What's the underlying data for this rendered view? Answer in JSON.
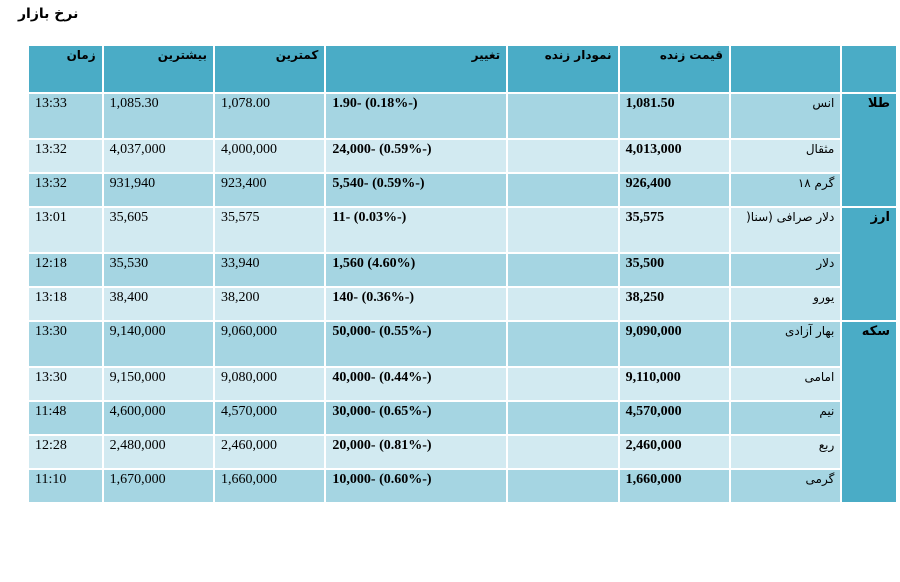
{
  "page": {
    "title": "نرخ بازار"
  },
  "headers": {
    "group": "",
    "name": "",
    "price": "قیمت زنده",
    "chart": "نمودار زنده",
    "change": "تغییر",
    "low": "کمترین",
    "high": "بیشترین",
    "time": "زمان"
  },
  "groups": [
    {
      "label": "طلا",
      "rows": [
        {
          "name": "انس",
          "price": "1,081.50",
          "chart": "",
          "change": "1.90- (0.18%-)",
          "low": "1,078.00",
          "high": "1,085.30",
          "time": "13:33"
        },
        {
          "name": "مثقال",
          "price": "4,013,000",
          "chart": "",
          "change": "24,000- (0.59%-)",
          "low": "4,000,000",
          "high": "4,037,000",
          "time": "13:32"
        },
        {
          "name": "گرم ۱۸",
          "price": "926,400",
          "chart": "",
          "change": "5,540- (0.59%-)",
          "low": "923,400",
          "high": "931,940",
          "time": "13:32"
        }
      ]
    },
    {
      "label": "ارز",
      "rows": [
        {
          "name": "دلار صرافی (سنا(",
          "price": "35,575",
          "chart": "",
          "change": "11- (0.03%-)",
          "low": "35,575",
          "high": "35,605",
          "time": "13:01"
        },
        {
          "name": "دلار",
          "price": "35,500",
          "chart": "",
          "change": "1,560 (4.60%)",
          "low": "33,940",
          "high": "35,530",
          "time": "12:18"
        },
        {
          "name": "یورو",
          "price": "38,250",
          "chart": "",
          "change": "140- (0.36%-)",
          "low": "38,200",
          "high": "38,400",
          "time": "13:18"
        }
      ]
    },
    {
      "label": "سکه",
      "rows": [
        {
          "name": "بهار آزادی",
          "price": "9,090,000",
          "chart": "",
          "change": "50,000- (0.55%-)",
          "low": "9,060,000",
          "high": "9,140,000",
          "time": "13:30"
        },
        {
          "name": "امامی",
          "price": "9,110,000",
          "chart": "",
          "change": "40,000- (0.44%-)",
          "low": "9,080,000",
          "high": "9,150,000",
          "time": "13:30"
        },
        {
          "name": "نیم",
          "price": "4,570,000",
          "chart": "",
          "change": "30,000- (0.65%-)",
          "low": "4,570,000",
          "high": "4,600,000",
          "time": "11:48"
        },
        {
          "name": "ربع",
          "price": "2,460,000",
          "chart": "",
          "change": "20,000- (0.81%-)",
          "low": "2,460,000",
          "high": "2,480,000",
          "time": "12:28"
        },
        {
          "name": "گرمی",
          "price": "1,660,000",
          "chart": "",
          "change": "10,000- (0.60%-)",
          "low": "1,660,000",
          "high": "1,670,000",
          "time": "11:10"
        }
      ]
    }
  ]
}
